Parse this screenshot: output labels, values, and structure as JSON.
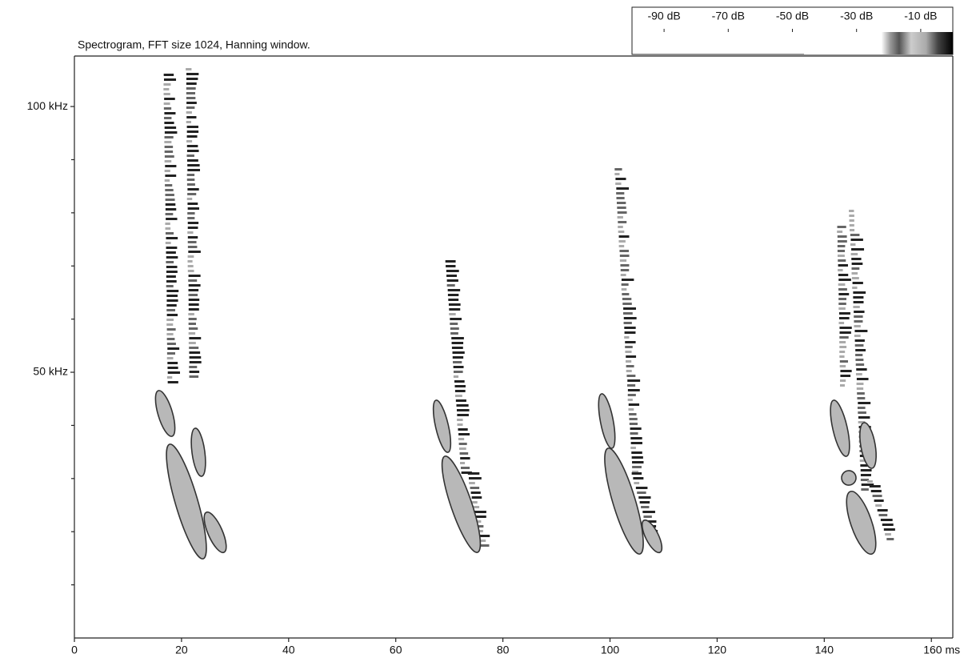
{
  "chart_data": {
    "type": "spectrogram",
    "title": "Spectrogram, FFT size 1024, Hanning window.",
    "xlim": [
      0,
      164
    ],
    "xticks": [
      0,
      20,
      40,
      60,
      80,
      100,
      120,
      140,
      {
        "value": 160,
        "label": "160 ms"
      }
    ],
    "ylim": [
      0,
      109.5
    ],
    "yticks": [
      {
        "value": 50,
        "label": "50 kHz"
      },
      {
        "value": 100,
        "label": "100 kHz"
      }
    ],
    "yminorticks": [
      10,
      20,
      30,
      40,
      60,
      70,
      80,
      90
    ],
    "colorbar": {
      "lim": [
        -100,
        0
      ],
      "ticks": [
        {
          "value": -90,
          "label": "-90 dB"
        },
        {
          "value": -70,
          "label": "-70 dB"
        },
        {
          "value": -50,
          "label": "-50 dB"
        },
        {
          "value": -30,
          "label": "-30 dB"
        },
        {
          "value": -10,
          "label": "-10 dB"
        }
      ]
    }
  }
}
